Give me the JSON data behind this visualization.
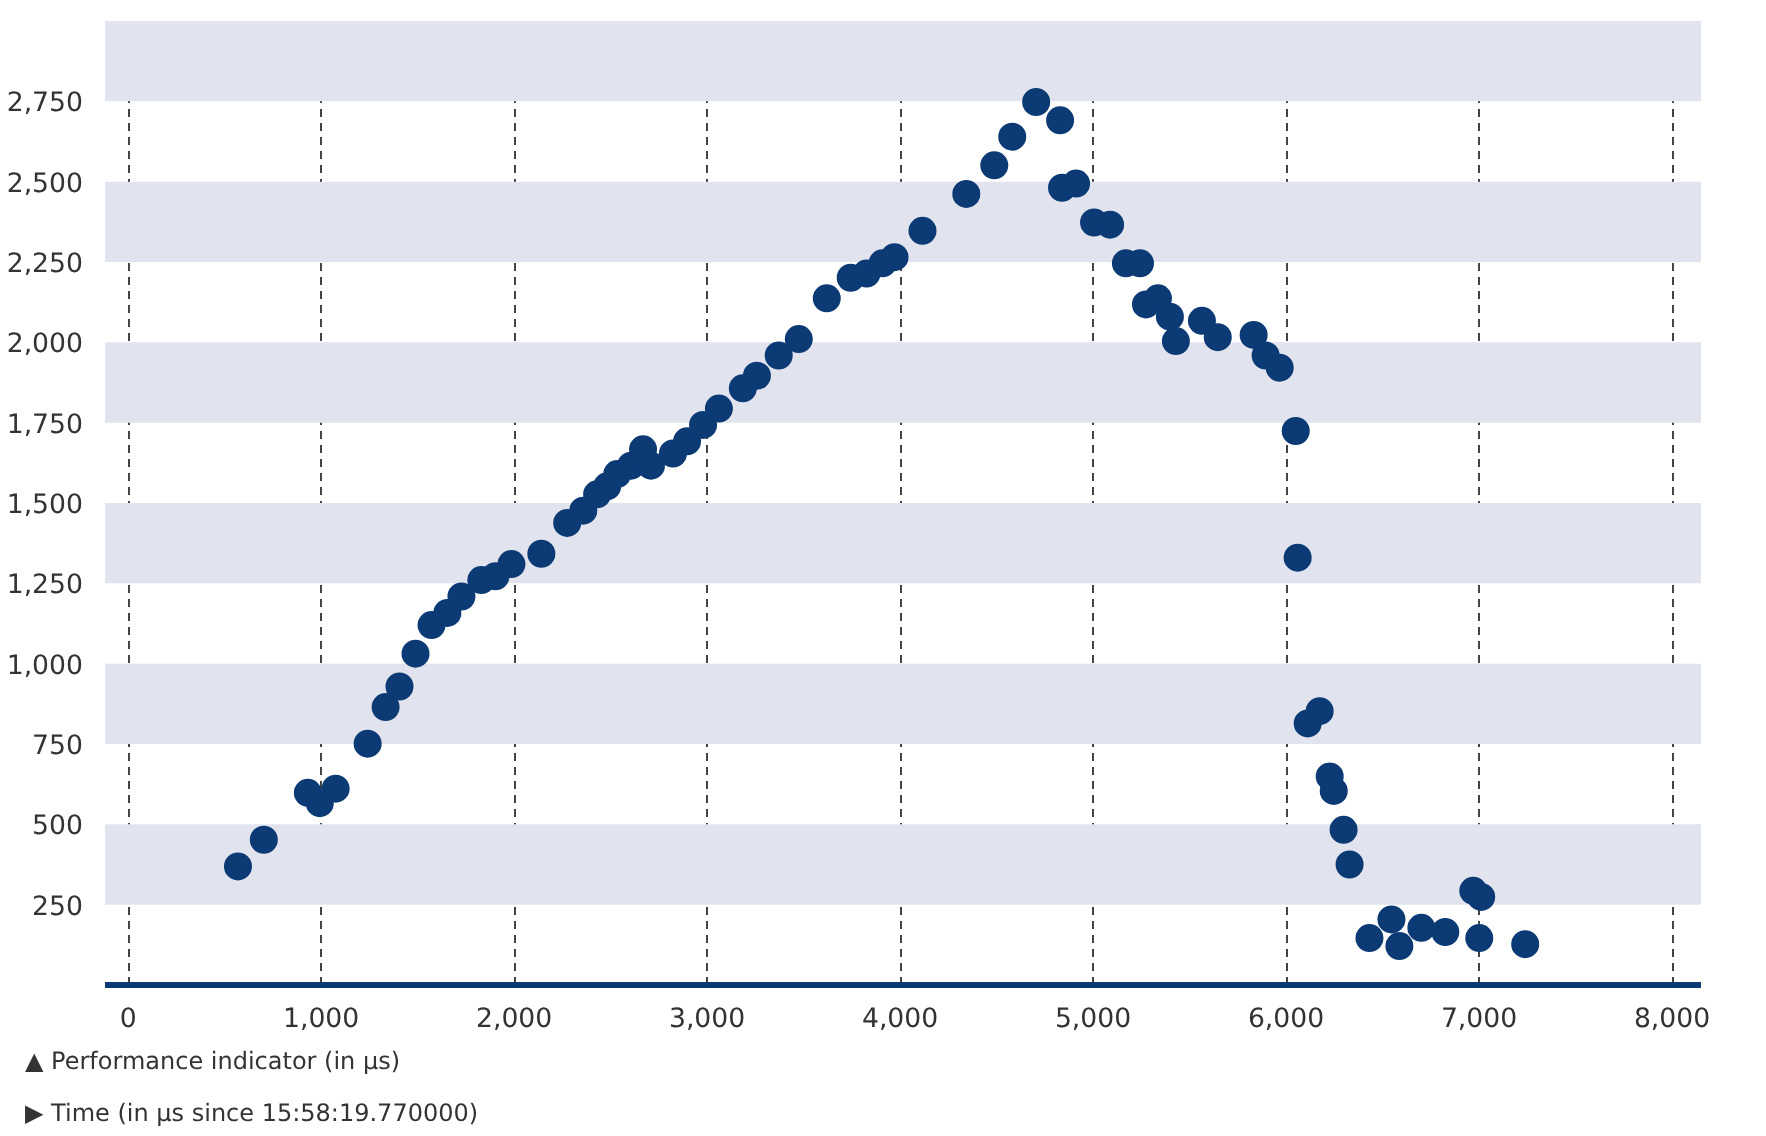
{
  "chart_data": {
    "type": "scatter",
    "xlabel": "▶ Time (in µs since 15:58:19.770000)",
    "ylabel": "▲ Performance indicator (in µs)",
    "xlim": [
      -120,
      8150
    ],
    "ylim": [
      0,
      3000
    ],
    "xticks": [
      0,
      {
        "value": 1000,
        "label": "1,000"
      },
      {
        "value": 2000,
        "label": "2,000"
      },
      {
        "value": 3000,
        "label": "3,000"
      },
      {
        "value": 4000,
        "label": "4,000"
      },
      {
        "value": 5000,
        "label": "5,000"
      },
      {
        "value": 6000,
        "label": "6,000"
      },
      {
        "value": 7000,
        "label": "7,000"
      },
      {
        "value": 8000,
        "label": "8,000"
      }
    ],
    "yticks": [
      250,
      500,
      750,
      {
        "value": 1000,
        "label": "1,000"
      },
      {
        "value": 1250,
        "label": "1,250"
      },
      {
        "value": 1500,
        "label": "1,500"
      },
      {
        "value": 1750,
        "label": "1,750"
      },
      {
        "value": 2000,
        "label": "2,000"
      },
      {
        "value": 2250,
        "label": "2,250"
      },
      {
        "value": 2500,
        "label": "2,500"
      },
      {
        "value": 2750,
        "label": "2,750"
      }
    ],
    "grid": "x",
    "marker": "circle",
    "bands": [
      {
        "axis": "y",
        "from": 250,
        "to": 500,
        "color": "#e1e4ee"
      },
      {
        "axis": "y",
        "from": 750,
        "to": 1000,
        "color": "#e1e4ee"
      },
      {
        "axis": "y",
        "from": 1250,
        "to": 1500,
        "color": "#e1e4ee"
      },
      {
        "axis": "y",
        "from": 1750,
        "to": 2000,
        "color": "#e1e4ee"
      },
      {
        "axis": "y",
        "from": 2250,
        "to": 2500,
        "color": "#e1e4ee"
      },
      {
        "axis": "y",
        "from": 2750,
        "to": 3000,
        "color": "#e1e4ee"
      }
    ],
    "series": [
      {
        "color": "#0b3a75",
        "x": [
          569,
          703,
          931,
          993,
          1075,
          1241,
          1334,
          1406,
          1489,
          1572,
          1654,
          1727,
          1830,
          1903,
          1986,
          2141,
          2275,
          2358,
          2430,
          2482,
          2534,
          2606,
          2668,
          2709,
          2823,
          2896,
          2979,
          3061,
          3185,
          3258,
          3371,
          3475,
          3620,
          3744,
          3826,
          3909,
          3971,
          4116,
          4343,
          4488,
          4581,
          4705,
          4829,
          4839,
          4912,
          5005,
          5088,
          5170,
          5243,
          5274,
          5336,
          5398,
          5429,
          5564,
          5646,
          5832,
          5894,
          5967,
          6050,
          6060,
          6112,
          6174,
          6226,
          6247,
          6298,
          6329,
          6432,
          6546,
          6587,
          6701,
          6825,
          6970,
          7011,
          7001,
          7239
        ],
        "values": [
          369,
          452,
          598,
          566,
          611,
          751,
          865,
          929,
          1031,
          1120,
          1158,
          1209,
          1260,
          1272,
          1310,
          1342,
          1438,
          1476,
          1527,
          1552,
          1590,
          1616,
          1667,
          1616,
          1654,
          1692,
          1743,
          1794,
          1857,
          1896,
          1959,
          2010,
          2137,
          2201,
          2214,
          2246,
          2265,
          2347,
          2462,
          2551,
          2640,
          2748,
          2691,
          2481,
          2494,
          2373,
          2366,
          2246,
          2246,
          2118,
          2137,
          2080,
          2004,
          2067,
          2016,
          2023,
          1959,
          1921,
          1724,
          1330,
          814,
          852,
          649,
          604,
          483,
          375,
          146,
          204,
          121,
          178,
          165,
          293,
          274,
          146,
          127
        ]
      }
    ]
  }
}
